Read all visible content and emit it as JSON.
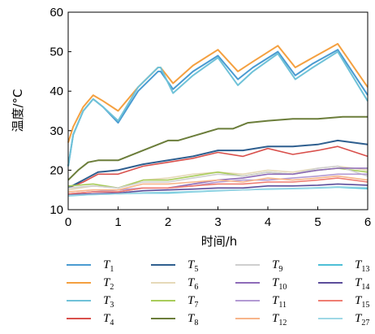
{
  "chart_data": {
    "type": "line",
    "xlabel": "时间/h",
    "ylabel": "温度/°C",
    "xlim": [
      0,
      6
    ],
    "ylim": [
      10,
      60
    ],
    "xticks": [
      0,
      1,
      2,
      3,
      4,
      5,
      6
    ],
    "yticks": [
      10,
      20,
      30,
      40,
      50,
      60
    ],
    "grid": false,
    "legend_position": "bottom",
    "series": [
      {
        "name": "T1",
        "label_main": "T",
        "label_sub": "1",
        "color": "#4a9bd1",
        "x": [
          0,
          0.1,
          0.3,
          0.5,
          0.7,
          1.0,
          1.4,
          1.8,
          1.85,
          2.1,
          2.5,
          3.0,
          3.4,
          3.7,
          4.2,
          4.55,
          4.9,
          5.4,
          6.0
        ],
        "y": [
          21,
          29,
          35,
          38,
          36,
          32,
          40,
          45,
          45,
          40.5,
          45,
          49,
          43,
          46,
          50,
          44,
          47,
          50.5,
          39
        ]
      },
      {
        "name": "T2",
        "label_main": "T",
        "label_sub": "2",
        "color": "#f4a040",
        "x": [
          0,
          0.1,
          0.3,
          0.5,
          0.7,
          1.0,
          1.4,
          1.8,
          1.85,
          2.1,
          2.5,
          3.0,
          3.4,
          3.7,
          4.2,
          4.55,
          4.9,
          5.4,
          6.0
        ],
        "y": [
          27,
          31,
          36,
          39,
          37.5,
          35,
          41,
          46,
          46,
          42,
          46.5,
          50.5,
          45,
          47.5,
          51.5,
          46,
          48.5,
          52,
          41
        ]
      },
      {
        "name": "T3",
        "label_main": "T",
        "label_sub": "3",
        "color": "#6fc2d8",
        "x": [
          0,
          0.1,
          0.3,
          0.5,
          0.7,
          1.0,
          1.4,
          1.8,
          1.85,
          2.1,
          2.5,
          3.0,
          3.4,
          3.7,
          4.2,
          4.55,
          4.9,
          5.4,
          6.0
        ],
        "y": [
          21,
          29,
          35,
          38,
          36,
          32.5,
          41,
          46,
          46,
          39.5,
          44,
          48.5,
          41.5,
          45,
          49.5,
          43,
          46,
          50,
          37.5
        ]
      },
      {
        "name": "T4",
        "label_main": "T",
        "label_sub": "4",
        "color": "#d9504c",
        "x": [
          0,
          0.3,
          0.6,
          1.0,
          1.5,
          2.0,
          2.5,
          3.0,
          3.5,
          4.0,
          4.5,
          5.0,
          5.4,
          6.0
        ],
        "y": [
          15.5,
          17,
          19,
          19,
          21,
          22,
          23,
          24.5,
          23.5,
          25.5,
          24,
          25,
          26,
          23.5
        ]
      },
      {
        "name": "T5",
        "label_main": "T",
        "label_sub": "5",
        "color": "#2f5f8f",
        "x": [
          0,
          0.3,
          0.6,
          1.0,
          1.5,
          2.0,
          2.5,
          3.0,
          3.5,
          4.0,
          4.5,
          5.0,
          5.4,
          6.0
        ],
        "y": [
          15.5,
          17.5,
          19.5,
          20,
          21.5,
          22.5,
          23.5,
          25,
          25,
          26,
          26,
          26.5,
          27.5,
          26.5
        ]
      },
      {
        "name": "T6",
        "label_main": "T",
        "label_sub": "6",
        "color": "#e6d9b8",
        "x": [
          0,
          0.5,
          1.0,
          1.5,
          2.0,
          2.5,
          3.0,
          3.5,
          4.0,
          4.5,
          5.0,
          5.4,
          6.0
        ],
        "y": [
          15,
          16,
          15.5,
          17.5,
          18,
          19,
          19.5,
          19,
          20,
          19.5,
          20.5,
          21,
          20
        ]
      },
      {
        "name": "T7",
        "label_main": "T",
        "label_sub": "7",
        "color": "#a8cc5a",
        "x": [
          0,
          0.5,
          1.0,
          1.5,
          2.0,
          2.5,
          3.0,
          3.5,
          4.0,
          4.5,
          5.0,
          5.4,
          6.0
        ],
        "y": [
          16,
          16.5,
          15.5,
          17.5,
          17.5,
          18.5,
          19.5,
          18.5,
          19.5,
          19,
          20,
          20.5,
          19.5
        ]
      },
      {
        "name": "T8",
        "label_main": "T",
        "label_sub": "8",
        "color": "#6b7d3a",
        "x": [
          0,
          0.2,
          0.4,
          0.6,
          1.0,
          1.5,
          2.0,
          2.2,
          2.6,
          3.0,
          3.3,
          3.6,
          4.0,
          4.5,
          5.0,
          5.5,
          6.0
        ],
        "y": [
          17.5,
          20,
          22,
          22.5,
          22.5,
          25,
          27.5,
          27.5,
          29,
          30.5,
          30.5,
          32,
          32.5,
          33,
          33,
          33.5,
          33.5
        ]
      },
      {
        "name": "T9",
        "label_main": "T",
        "label_sub": "9",
        "color": "#cfcfcf",
        "x": [
          0,
          0.5,
          1.0,
          1.5,
          2.0,
          2.5,
          3.0,
          3.5,
          4.0,
          4.5,
          5.0,
          5.4,
          6.0
        ],
        "y": [
          15.5,
          16,
          15.5,
          17,
          17,
          18,
          19,
          18.5,
          19.5,
          19,
          20.5,
          21,
          18.5
        ]
      },
      {
        "name": "T10",
        "label_main": "T",
        "label_sub": "10",
        "color": "#8e6bb8",
        "x": [
          0,
          0.5,
          1.0,
          1.5,
          2.0,
          2.5,
          3.0,
          3.5,
          4.0,
          4.5,
          5.0,
          5.4,
          6.0
        ],
        "y": [
          14,
          14.5,
          14.5,
          15.5,
          15.5,
          16.5,
          17.5,
          18,
          19,
          19,
          20,
          20.5,
          20.5
        ]
      },
      {
        "name": "T11",
        "label_main": "T",
        "label_sub": "11",
        "color": "#b39ad3",
        "x": [
          0,
          0.5,
          1.0,
          1.5,
          2.0,
          2.5,
          3.0,
          3.5,
          4.0,
          4.5,
          5.0,
          5.4,
          6.0
        ],
        "y": [
          14,
          14.5,
          15,
          15.5,
          15.5,
          16,
          17,
          17.5,
          17.5,
          18,
          18.5,
          19,
          19
        ]
      },
      {
        "name": "T12",
        "label_main": "T",
        "label_sub": "12",
        "color": "#f7b58a",
        "x": [
          0,
          0.5,
          1.0,
          1.5,
          2.0,
          2.5,
          3.0,
          3.5,
          4.0,
          4.5,
          5.0,
          5.4,
          6.0
        ],
        "y": [
          14.5,
          15,
          15,
          16.5,
          16.5,
          17,
          17.5,
          17,
          18,
          17.5,
          18,
          18.5,
          17.5
        ]
      },
      {
        "name": "T13",
        "label_main": "T",
        "label_sub": "13",
        "color": "#4dbfd6",
        "x": [
          0,
          0.5,
          1.0,
          1.5,
          2.0,
          2.5,
          3.0,
          3.5,
          4.0,
          4.5,
          5.0,
          5.4,
          6.0
        ],
        "y": [
          13.5,
          13.8,
          14,
          14.2,
          14.2,
          14.5,
          14.8,
          15,
          15.2,
          15.3,
          15.5,
          15.7,
          15.3
        ]
      },
      {
        "name": "T14",
        "label_main": "T",
        "label_sub": "14",
        "color": "#5c4d9a",
        "x": [
          0,
          0.5,
          1.0,
          1.5,
          2.0,
          2.5,
          3.0,
          3.5,
          4.0,
          4.5,
          5.0,
          5.4,
          6.0
        ],
        "y": [
          13.8,
          14,
          14.2,
          14.8,
          15,
          15.2,
          15.5,
          15.5,
          16,
          16,
          16.2,
          16.5,
          16.2
        ]
      },
      {
        "name": "T15",
        "label_main": "T",
        "label_sub": "15",
        "color": "#ef7d72",
        "x": [
          0,
          0.5,
          1.0,
          1.5,
          2.0,
          2.5,
          3.0,
          3.5,
          4.0,
          4.5,
          5.0,
          5.4,
          6.0
        ],
        "y": [
          14,
          14.5,
          14.5,
          15.5,
          15.5,
          16,
          16.5,
          16.5,
          17,
          17,
          17.5,
          18,
          17
        ]
      },
      {
        "name": "T27",
        "label_main": "T",
        "label_sub": "27",
        "color": "#9fd8e6",
        "x": [
          0,
          0.5,
          1.0,
          1.5,
          2.0,
          2.5,
          3.0,
          3.5,
          4.0,
          4.5,
          5.0,
          5.4,
          6.0
        ],
        "y": [
          13.6,
          13.8,
          14,
          14.3,
          14.4,
          14.6,
          14.9,
          15,
          15.3,
          15.4,
          15.6,
          15.8,
          15.6
        ]
      }
    ]
  }
}
